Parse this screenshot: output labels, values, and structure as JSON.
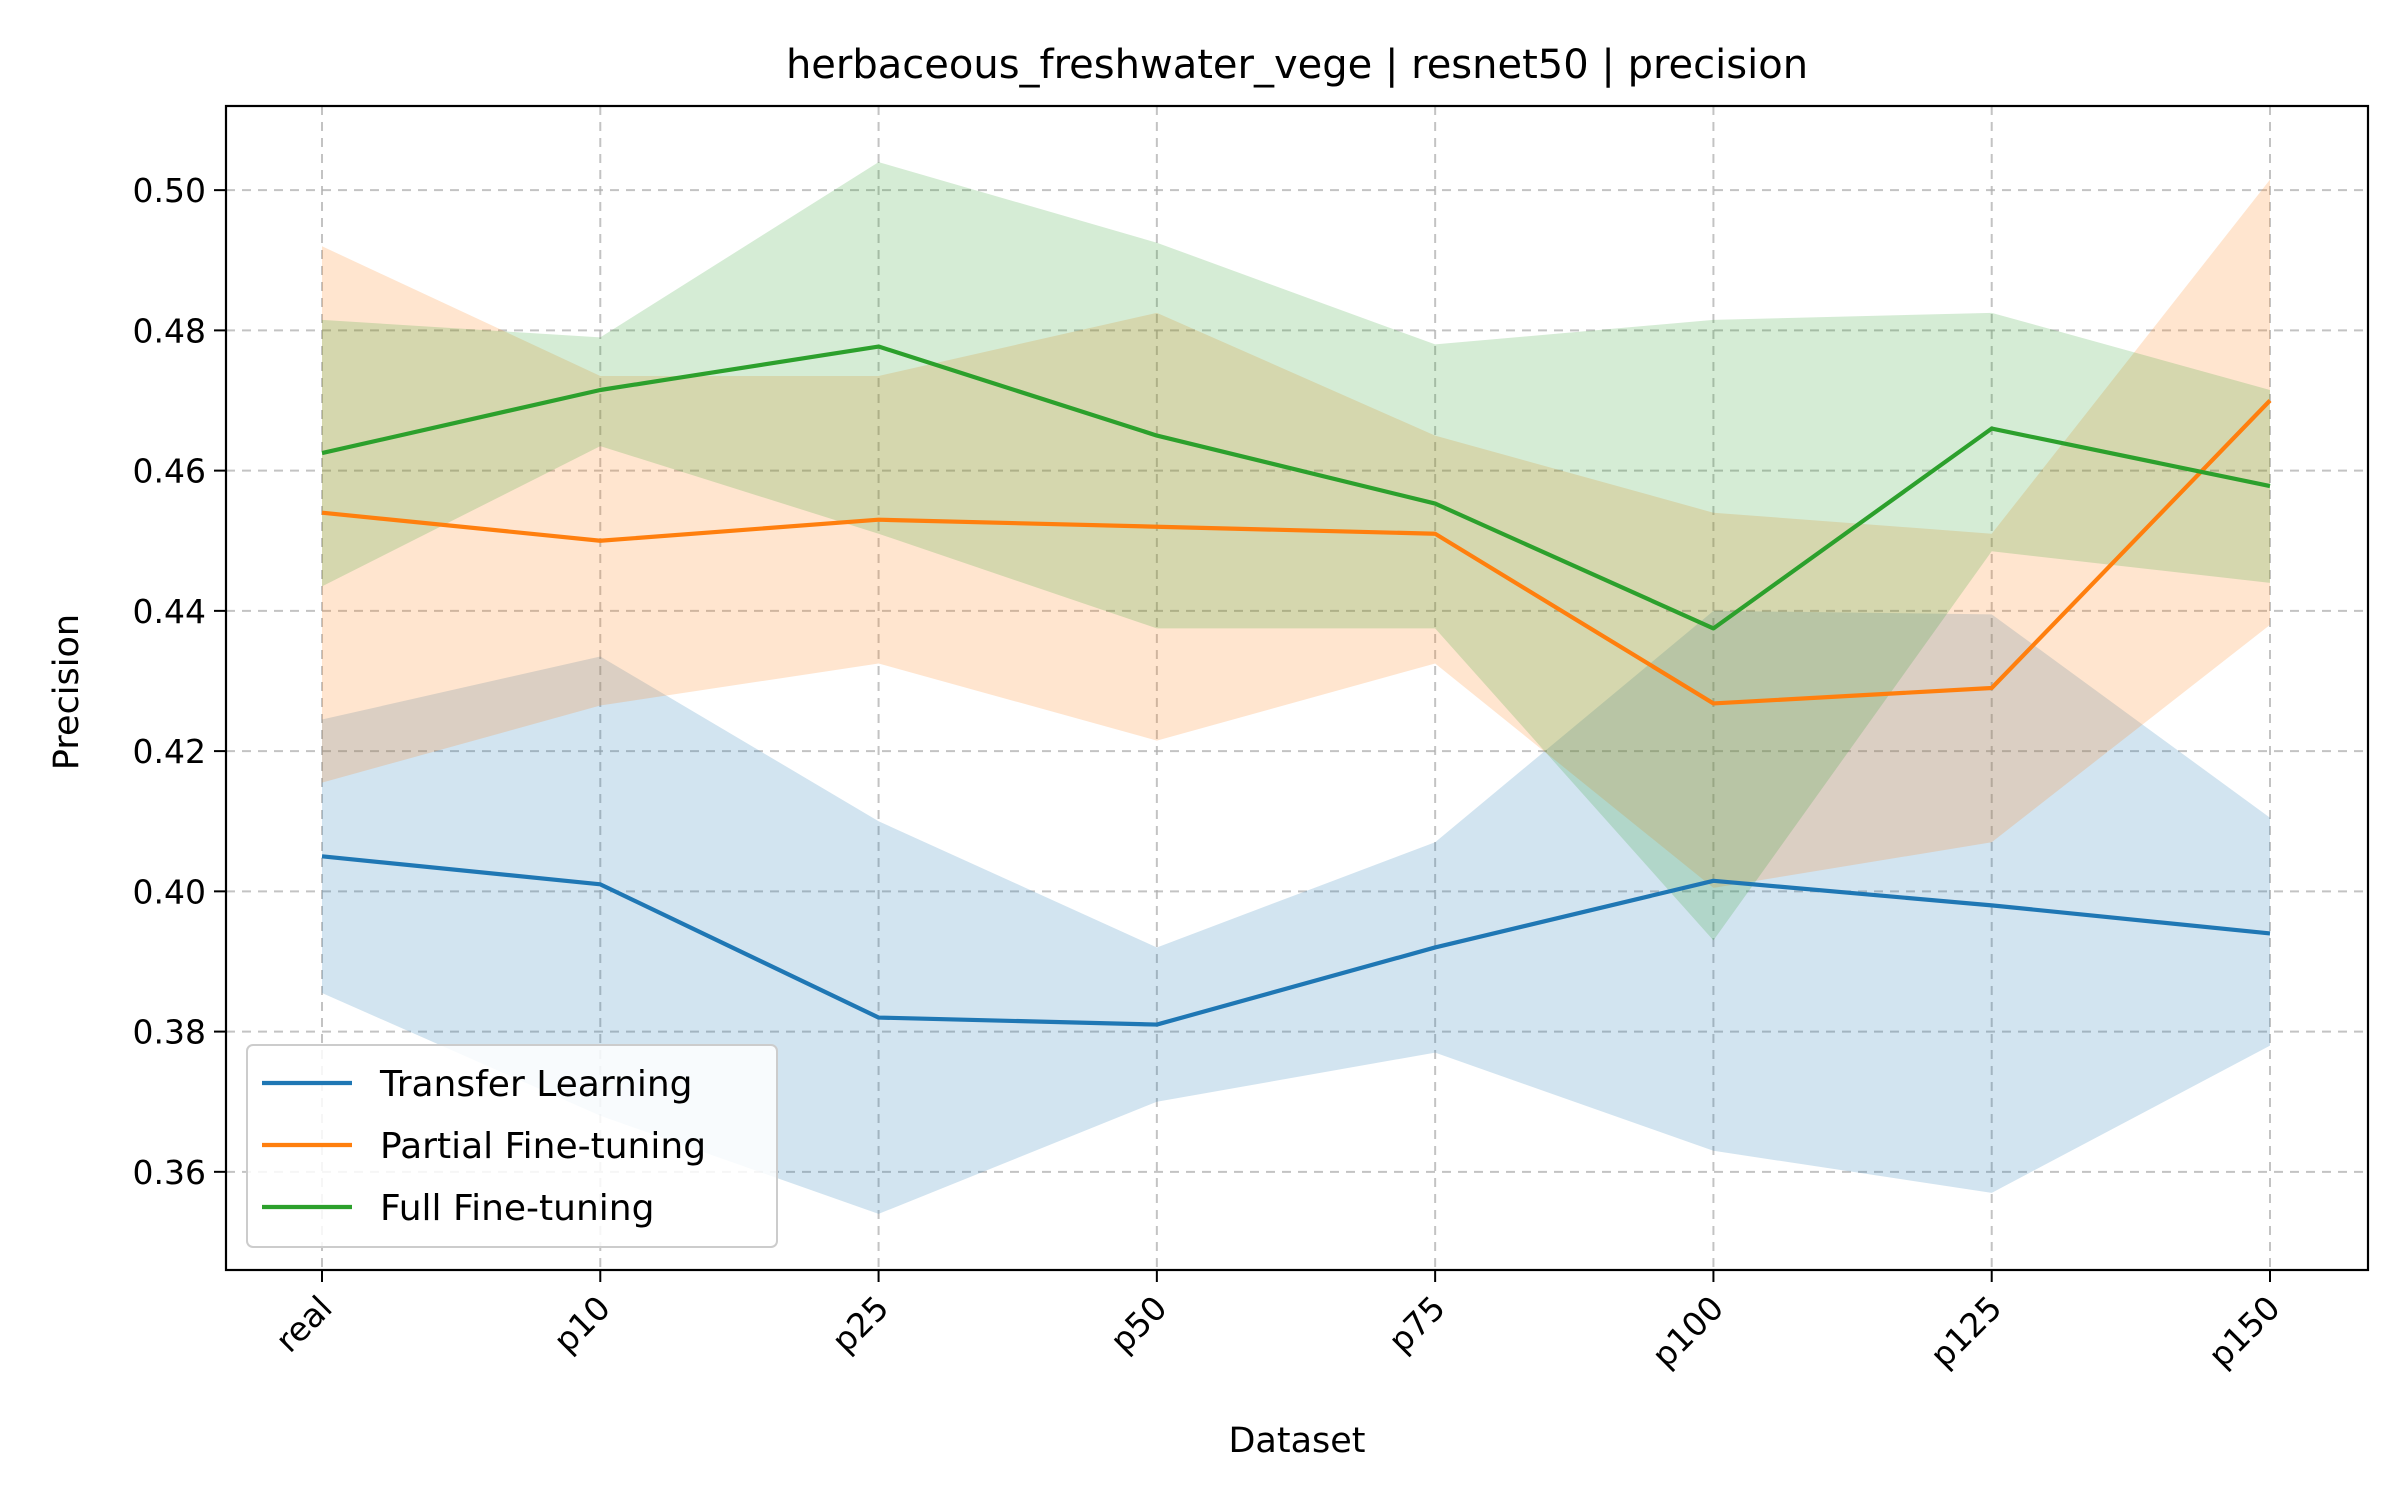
{
  "chart_data": {
    "type": "line",
    "title": "herbaceous_freshwater_vege | resnet50 | precision",
    "xlabel": "Dataset",
    "ylabel": "Precision",
    "categories": [
      "real",
      "p10",
      "p25",
      "p50",
      "p75",
      "p100",
      "p125",
      "p150"
    ],
    "ylim": [
      0.346,
      0.512
    ],
    "yticks": [
      0.36,
      0.38,
      0.4,
      0.42,
      0.44,
      0.46,
      0.48,
      0.5
    ],
    "ytick_labels": [
      "0.36",
      "0.38",
      "0.40",
      "0.42",
      "0.44",
      "0.46",
      "0.48",
      "0.50"
    ],
    "grid": true,
    "legend_position": "lower-left",
    "series": [
      {
        "name": "Transfer Learning",
        "color": "#1f77b4",
        "values": [
          0.405,
          0.401,
          0.382,
          0.381,
          0.392,
          0.4015,
          0.398,
          0.394
        ],
        "lower": [
          0.3855,
          0.368,
          0.354,
          0.37,
          0.377,
          0.363,
          0.357,
          0.378
        ],
        "upper": [
          0.4245,
          0.4335,
          0.41,
          0.392,
          0.407,
          0.44,
          0.4395,
          0.4105
        ]
      },
      {
        "name": "Partial Fine-tuning",
        "color": "#ff7f0e",
        "values": [
          0.454,
          0.45,
          0.453,
          0.452,
          0.451,
          0.4268,
          0.429,
          0.47
        ],
        "lower": [
          0.4155,
          0.4265,
          0.4325,
          0.4215,
          0.4325,
          0.4005,
          0.407,
          0.438
        ],
        "upper": [
          0.492,
          0.4735,
          0.4735,
          0.4825,
          0.465,
          0.454,
          0.451,
          0.5015
        ]
      },
      {
        "name": "Full Fine-tuning",
        "color": "#2ca02c",
        "values": [
          0.4625,
          0.4715,
          0.4777,
          0.465,
          0.4553,
          0.4375,
          0.466,
          0.4578
        ],
        "lower": [
          0.4435,
          0.4635,
          0.451,
          0.4375,
          0.4375,
          0.393,
          0.4485,
          0.444
        ],
        "upper": [
          0.4815,
          0.479,
          0.504,
          0.4925,
          0.478,
          0.4815,
          0.4825,
          0.4715
        ]
      }
    ]
  }
}
